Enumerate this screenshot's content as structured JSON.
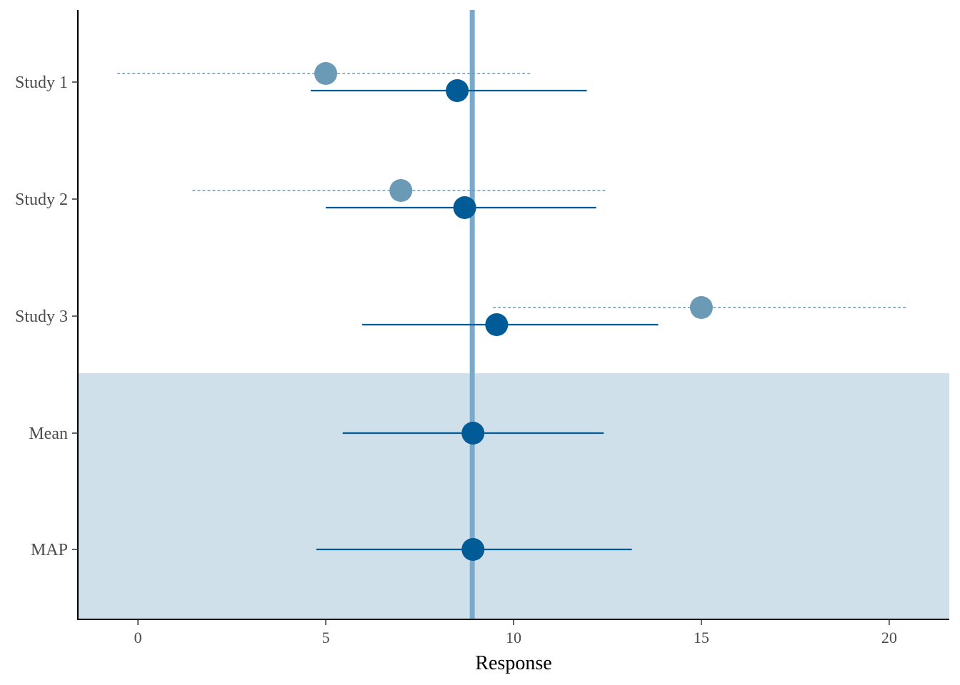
{
  "chart_data": {
    "type": "forest",
    "xlabel": "Response",
    "ylabel": "",
    "xlim": [
      -1.6,
      21.6
    ],
    "x_ticks": [
      0,
      5,
      10,
      15,
      20
    ],
    "x_tick_labels": [
      "0",
      "5",
      "10",
      "15",
      "20"
    ],
    "categories": [
      "Study 1",
      "Study 2",
      "Study 3",
      "Mean",
      "MAP"
    ],
    "reference_line": 8.9,
    "shaded_categories": [
      "Mean",
      "MAP"
    ],
    "grid": false,
    "series": [
      {
        "line_style": "dashed",
        "color": "#6a9ab5",
        "points": [
          {
            "category": "Study 1",
            "estimate": 5.0,
            "lower": -0.55,
            "upper": 10.5
          },
          {
            "category": "Study 2",
            "estimate": 7.0,
            "lower": 1.45,
            "upper": 12.5
          },
          {
            "category": "Study 3",
            "estimate": 15.0,
            "lower": 9.45,
            "upper": 20.5
          }
        ]
      },
      {
        "line_style": "solid",
        "color": "#005b96",
        "points": [
          {
            "category": "Study 1",
            "estimate": 8.5,
            "lower": 4.6,
            "upper": 11.95
          },
          {
            "category": "Study 2",
            "estimate": 8.7,
            "lower": 5.0,
            "upper": 12.2
          },
          {
            "category": "Study 3",
            "estimate": 9.55,
            "lower": 5.97,
            "upper": 13.85
          },
          {
            "category": "Mean",
            "estimate": 8.92,
            "lower": 5.45,
            "upper": 12.4
          },
          {
            "category": "MAP",
            "estimate": 8.92,
            "lower": 4.75,
            "upper": 13.15
          }
        ]
      }
    ],
    "colors": {
      "shade": "#d0e0eb",
      "reference": "#7aaacb",
      "axis": "#000000"
    }
  }
}
